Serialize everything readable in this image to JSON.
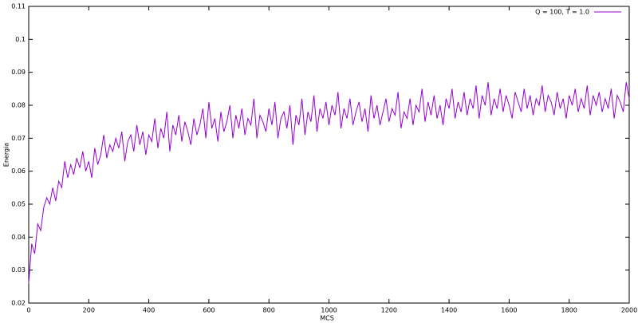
{
  "chart_data": {
    "type": "line",
    "xlabel": "MCS",
    "ylabel": "Energia",
    "legend": "top-right",
    "xlim": [
      0,
      2000
    ],
    "ylim": [
      0.02,
      0.11
    ],
    "xticks": [
      0,
      200,
      400,
      600,
      800,
      1000,
      1200,
      1400,
      1600,
      1800,
      2000
    ],
    "yticks": [
      0.02,
      0.03,
      0.04,
      0.05,
      0.06,
      0.07,
      0.08,
      0.09,
      0.1,
      0.11
    ],
    "x": [
      0,
      10,
      20,
      30,
      40,
      50,
      60,
      70,
      80,
      90,
      100,
      110,
      120,
      130,
      140,
      150,
      160,
      170,
      180,
      190,
      200,
      210,
      220,
      230,
      240,
      250,
      260,
      270,
      280,
      290,
      300,
      310,
      320,
      330,
      340,
      350,
      360,
      370,
      380,
      390,
      400,
      410,
      420,
      430,
      440,
      450,
      460,
      470,
      480,
      490,
      500,
      510,
      520,
      530,
      540,
      550,
      560,
      570,
      580,
      590,
      600,
      610,
      620,
      630,
      640,
      650,
      660,
      670,
      680,
      690,
      700,
      710,
      720,
      730,
      740,
      750,
      760,
      770,
      780,
      790,
      800,
      810,
      820,
      830,
      840,
      850,
      860,
      870,
      880,
      890,
      900,
      910,
      920,
      930,
      940,
      950,
      960,
      970,
      980,
      990,
      1000,
      1010,
      1020,
      1030,
      1040,
      1050,
      1060,
      1070,
      1080,
      1090,
      1100,
      1110,
      1120,
      1130,
      1140,
      1150,
      1160,
      1170,
      1180,
      1190,
      1200,
      1210,
      1220,
      1230,
      1240,
      1250,
      1260,
      1270,
      1280,
      1290,
      1300,
      1310,
      1320,
      1330,
      1340,
      1350,
      1360,
      1370,
      1380,
      1390,
      1400,
      1410,
      1420,
      1430,
      1440,
      1450,
      1460,
      1470,
      1480,
      1490,
      1500,
      1510,
      1520,
      1530,
      1540,
      1550,
      1560,
      1570,
      1580,
      1590,
      1600,
      1610,
      1620,
      1630,
      1640,
      1650,
      1660,
      1670,
      1680,
      1690,
      1700,
      1710,
      1720,
      1730,
      1740,
      1750,
      1760,
      1770,
      1780,
      1790,
      1800,
      1810,
      1820,
      1830,
      1840,
      1850,
      1860,
      1870,
      1880,
      1890,
      1900,
      1910,
      1920,
      1930,
      1940,
      1950,
      1960,
      1970,
      1980,
      1990,
      2000
    ],
    "series": [
      {
        "name": "Q = 100, T = 1.0",
        "color": "#9400d3",
        "values": [
          0.026,
          0.038,
          0.035,
          0.044,
          0.042,
          0.049,
          0.052,
          0.05,
          0.055,
          0.051,
          0.057,
          0.055,
          0.063,
          0.058,
          0.062,
          0.059,
          0.064,
          0.061,
          0.066,
          0.06,
          0.063,
          0.058,
          0.067,
          0.062,
          0.065,
          0.071,
          0.064,
          0.068,
          0.066,
          0.07,
          0.067,
          0.072,
          0.063,
          0.069,
          0.071,
          0.066,
          0.074,
          0.068,
          0.072,
          0.065,
          0.071,
          0.069,
          0.076,
          0.067,
          0.073,
          0.07,
          0.078,
          0.066,
          0.074,
          0.071,
          0.077,
          0.069,
          0.075,
          0.072,
          0.068,
          0.076,
          0.071,
          0.074,
          0.079,
          0.07,
          0.081,
          0.073,
          0.076,
          0.069,
          0.078,
          0.072,
          0.075,
          0.08,
          0.07,
          0.077,
          0.073,
          0.079,
          0.071,
          0.076,
          0.074,
          0.082,
          0.07,
          0.077,
          0.075,
          0.072,
          0.079,
          0.074,
          0.081,
          0.07,
          0.076,
          0.078,
          0.073,
          0.08,
          0.068,
          0.077,
          0.074,
          0.082,
          0.071,
          0.078,
          0.075,
          0.083,
          0.072,
          0.079,
          0.076,
          0.081,
          0.074,
          0.08,
          0.077,
          0.084,
          0.073,
          0.079,
          0.076,
          0.082,
          0.074,
          0.078,
          0.081,
          0.075,
          0.079,
          0.072,
          0.083,
          0.076,
          0.08,
          0.074,
          0.078,
          0.082,
          0.075,
          0.079,
          0.077,
          0.084,
          0.073,
          0.078,
          0.076,
          0.082,
          0.074,
          0.08,
          0.078,
          0.085,
          0.075,
          0.081,
          0.077,
          0.083,
          0.076,
          0.08,
          0.074,
          0.082,
          0.079,
          0.085,
          0.076,
          0.081,
          0.078,
          0.084,
          0.077,
          0.082,
          0.079,
          0.086,
          0.076,
          0.083,
          0.08,
          0.087,
          0.077,
          0.082,
          0.079,
          0.085,
          0.078,
          0.083,
          0.08,
          0.076,
          0.084,
          0.081,
          0.078,
          0.085,
          0.079,
          0.083,
          0.077,
          0.082,
          0.08,
          0.086,
          0.078,
          0.083,
          0.081,
          0.077,
          0.084,
          0.079,
          0.082,
          0.076,
          0.083,
          0.08,
          0.085,
          0.078,
          0.082,
          0.079,
          0.086,
          0.077,
          0.083,
          0.08,
          0.084,
          0.078,
          0.082,
          0.079,
          0.085,
          0.076,
          0.083,
          0.081,
          0.078,
          0.087,
          0.082
        ]
      }
    ]
  }
}
